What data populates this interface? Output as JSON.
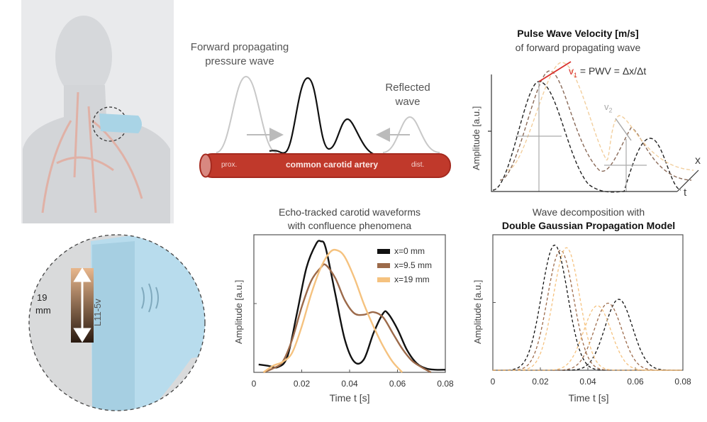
{
  "illustration": {
    "probe_label": "L11-5v",
    "depth_label_value": "19",
    "depth_label_unit": "mm"
  },
  "schematic": {
    "forward_label_1": "Forward propagating",
    "forward_label_2": "pressure wave",
    "reflected_label_1": "Reflected",
    "reflected_label_2": "wave",
    "artery_label": "common carotid artery",
    "prox_label": "prox.",
    "dist_label": "dist.",
    "artery_color": "#c0392b"
  },
  "pwv_panel": {
    "title": "Pulse Wave Velocity [m/s]",
    "subtitle": "of forward propagating wave",
    "v1_label": "v",
    "v1_sub": "1",
    "equation": " = PWV = Δx/Δt",
    "v2_label": "v",
    "v2_sub": "2",
    "ylabel": "Amplitude [a.u.]",
    "x_axis_label": "x",
    "t_axis_label": "t"
  },
  "chart_data": [
    {
      "type": "line",
      "title_1": "Echo-tracked carotid waveforms",
      "title_2": "with confluence phenomena",
      "xlabel": "Time t [s]",
      "ylabel": "Amplitude [a.u.]",
      "xlim": [
        0,
        0.08
      ],
      "ylim": [
        0,
        1.05
      ],
      "xticks": [
        "0",
        "0.02",
        "0.04",
        "0.06",
        "0.08"
      ],
      "legend_placement": "top-right",
      "series": [
        {
          "name": "x=0 mm",
          "color": "#111111",
          "points": [
            [
              0.002,
              0.06
            ],
            [
              0.006,
              0.05
            ],
            [
              0.01,
              0.04
            ],
            [
              0.014,
              0.12
            ],
            [
              0.018,
              0.45
            ],
            [
              0.022,
              0.8
            ],
            [
              0.026,
              0.98
            ],
            [
              0.028,
              1.0
            ],
            [
              0.03,
              0.95
            ],
            [
              0.034,
              0.6
            ],
            [
              0.038,
              0.25
            ],
            [
              0.042,
              0.08
            ],
            [
              0.046,
              0.1
            ],
            [
              0.05,
              0.3
            ],
            [
              0.054,
              0.45
            ],
            [
              0.056,
              0.45
            ],
            [
              0.06,
              0.33
            ],
            [
              0.064,
              0.17
            ],
            [
              0.068,
              0.07
            ],
            [
              0.072,
              0.03
            ],
            [
              0.076,
              0.02
            ],
            [
              0.08,
              0.02
            ]
          ]
        },
        {
          "name": "x=9.5 mm",
          "color": "#9c6a4a",
          "points": [
            [
              0.004,
              0.0
            ],
            [
              0.008,
              0.03
            ],
            [
              0.012,
              0.08
            ],
            [
              0.016,
              0.25
            ],
            [
              0.02,
              0.5
            ],
            [
              0.024,
              0.7
            ],
            [
              0.028,
              0.8
            ],
            [
              0.03,
              0.82
            ],
            [
              0.034,
              0.72
            ],
            [
              0.038,
              0.55
            ],
            [
              0.042,
              0.45
            ],
            [
              0.046,
              0.44
            ],
            [
              0.05,
              0.46
            ],
            [
              0.054,
              0.42
            ],
            [
              0.058,
              0.3
            ],
            [
              0.062,
              0.18
            ],
            [
              0.066,
              0.09
            ],
            [
              0.07,
              0.04
            ],
            [
              0.074,
              0.0
            ]
          ]
        },
        {
          "name": "x=19 mm",
          "color": "#f5c27f",
          "points": [
            [
              0.004,
              0.0
            ],
            [
              0.008,
              0.05
            ],
            [
              0.012,
              0.08
            ],
            [
              0.016,
              0.15
            ],
            [
              0.02,
              0.35
            ],
            [
              0.024,
              0.6
            ],
            [
              0.028,
              0.8
            ],
            [
              0.032,
              0.92
            ],
            [
              0.035,
              0.93
            ],
            [
              0.038,
              0.88
            ],
            [
              0.042,
              0.72
            ],
            [
              0.046,
              0.52
            ],
            [
              0.05,
              0.35
            ],
            [
              0.054,
              0.2
            ],
            [
              0.058,
              0.08
            ],
            [
              0.062,
              0.0
            ]
          ]
        }
      ]
    },
    {
      "type": "line",
      "title_1": "Wave decomposition with",
      "title_2": "Double Gaussian Propagation Model",
      "xlabel": "Time t [s]",
      "ylabel": "Amplitude [a.u.]",
      "xlim": [
        0,
        0.08
      ],
      "ylim": [
        0,
        1.05
      ],
      "xticks": [
        "0",
        "0.02",
        "0.04",
        "0.06",
        "0.08"
      ],
      "line_style": "dashed",
      "series": [
        {
          "color": "#111111",
          "gaussians": [
            {
              "amp": 0.97,
              "mu": 0.026,
              "sigma": 0.0055
            },
            {
              "amp": 0.55,
              "mu": 0.053,
              "sigma": 0.0058
            }
          ]
        },
        {
          "color": "#9c6a4a",
          "gaussians": [
            {
              "amp": 0.93,
              "mu": 0.0285,
              "sigma": 0.0055
            },
            {
              "amp": 0.52,
              "mu": 0.0485,
              "sigma": 0.0058
            }
          ]
        },
        {
          "color": "#f5c27f",
          "gaussians": [
            {
              "amp": 0.95,
              "mu": 0.031,
              "sigma": 0.0055
            },
            {
              "amp": 0.5,
              "mu": 0.044,
              "sigma": 0.0058
            }
          ]
        }
      ]
    }
  ]
}
